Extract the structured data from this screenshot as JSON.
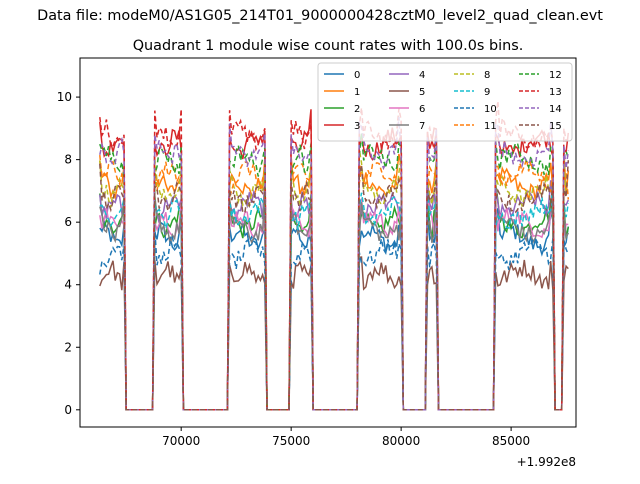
{
  "chart_data": {
    "type": "line",
    "suptitle": "Data file: modeM0/AS1G05_214T01_9000000428cztM0_level2_quad_clean.evt",
    "title": "Quadrant 1 module wise count rates with 100.0s bins.",
    "xlabel": "",
    "ylabel": "",
    "x_offset_label": "+1.992e8",
    "xlim": [
      65400,
      87950
    ],
    "ylim": [
      -0.55,
      11.25
    ],
    "xticks": [
      70000,
      75000,
      80000,
      85000
    ],
    "xtick_labels": [
      "70000",
      "75000",
      "80000",
      "85000"
    ],
    "yticks": [
      0,
      2,
      4,
      6,
      8,
      10
    ],
    "ytick_labels": [
      "0",
      "2",
      "4",
      "6",
      "8",
      "10"
    ],
    "grid": false,
    "legend_position": "top-right",
    "legend_columns": 4,
    "observing_segments": [
      {
        "x_start": 66300,
        "x_end": 67400
      },
      {
        "x_start": 68800,
        "x_end": 70000
      },
      {
        "x_start": 72200,
        "x_end": 73800
      },
      {
        "x_start": 75000,
        "x_end": 75900
      },
      {
        "x_start": 78100,
        "x_end": 80000
      },
      {
        "x_start": 81200,
        "x_end": 81600
      },
      {
        "x_start": 84300,
        "x_end": 86900
      },
      {
        "x_start": 87400,
        "x_end": 87600
      }
    ],
    "off_level": 0,
    "series": [
      {
        "name": "0",
        "color": "#1f77b4",
        "dash": "solid",
        "level": 5.5
      },
      {
        "name": "1",
        "color": "#ff7f0e",
        "dash": "solid",
        "level": 7.2
      },
      {
        "name": "2",
        "color": "#2ca02c",
        "dash": "solid",
        "level": 6.0
      },
      {
        "name": "3",
        "color": "#d62728",
        "dash": "solid",
        "level": 8.5
      },
      {
        "name": "4",
        "color": "#9467bd",
        "dash": "solid",
        "level": 6.5
      },
      {
        "name": "5",
        "color": "#8c564b",
        "dash": "solid",
        "level": 4.3
      },
      {
        "name": "6",
        "color": "#e377c2",
        "dash": "solid",
        "level": 6.0
      },
      {
        "name": "7",
        "color": "#7f7f7f",
        "dash": "solid",
        "level": 5.8
      },
      {
        "name": "8",
        "color": "#bcbd22",
        "dash": "dashed",
        "level": 7.0
      },
      {
        "name": "9",
        "color": "#17becf",
        "dash": "dashed",
        "level": 6.3
      },
      {
        "name": "10",
        "color": "#1f77b4",
        "dash": "dashed",
        "level": 5.0
      },
      {
        "name": "11",
        "color": "#ff7f0e",
        "dash": "dashed",
        "level": 7.5
      },
      {
        "name": "12",
        "color": "#2ca02c",
        "dash": "dashed",
        "level": 8.0
      },
      {
        "name": "13",
        "color": "#d62728",
        "dash": "dashed",
        "level": 8.8
      },
      {
        "name": "14",
        "color": "#9467bd",
        "dash": "dashed",
        "level": 8.2
      },
      {
        "name": "15",
        "color": "#8c564b",
        "dash": "dashed",
        "level": 6.8
      }
    ]
  }
}
